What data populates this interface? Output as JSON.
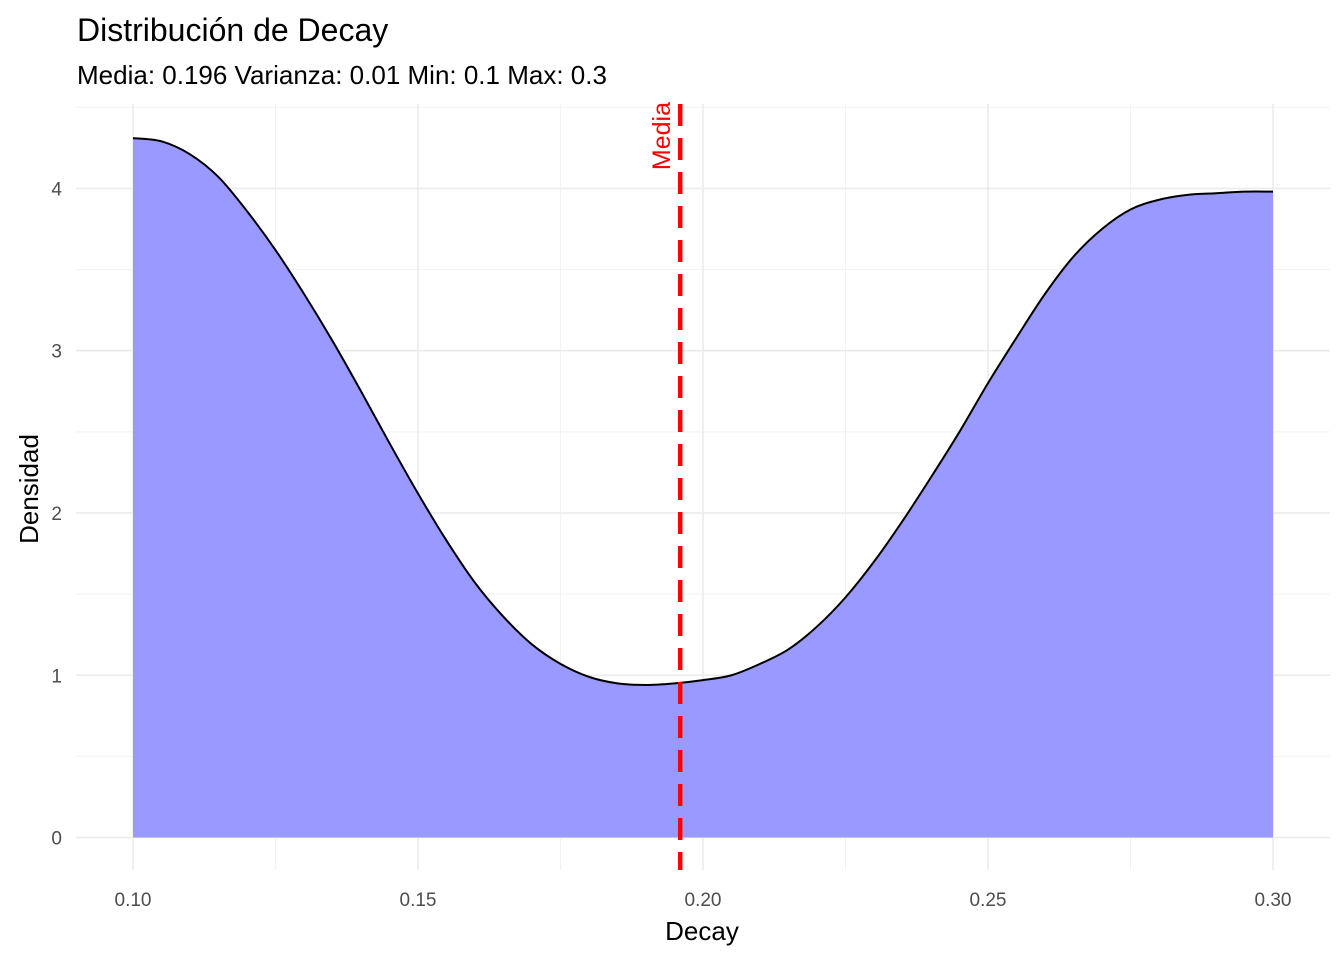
{
  "chart_data": {
    "type": "area",
    "title": "Distribución de Decay",
    "subtitle": "Media: 0.196 Varianza: 0.01 Min: 0.1 Max: 0.3",
    "xlabel": "Decay",
    "ylabel": "Densidad",
    "xlim": [
      0.09,
      0.31
    ],
    "ylim": [
      -0.2,
      4.52
    ],
    "x_ticks": [
      0.1,
      0.15,
      0.2,
      0.25,
      0.3
    ],
    "x_tick_labels": [
      "0.10",
      "0.15",
      "0.20",
      "0.25",
      "0.30"
    ],
    "y_ticks": [
      0,
      1,
      2,
      3,
      4
    ],
    "y_tick_labels": [
      "0",
      "1",
      "2",
      "3",
      "4"
    ],
    "grid": true,
    "series": [
      {
        "x": [
          0.1,
          0.105,
          0.11,
          0.115,
          0.12,
          0.125,
          0.13,
          0.135,
          0.14,
          0.145,
          0.15,
          0.155,
          0.16,
          0.165,
          0.17,
          0.175,
          0.18,
          0.185,
          0.19,
          0.195,
          0.2,
          0.205,
          0.21,
          0.215,
          0.22,
          0.225,
          0.23,
          0.235,
          0.24,
          0.245,
          0.25,
          0.255,
          0.26,
          0.265,
          0.27,
          0.275,
          0.28,
          0.285,
          0.29,
          0.295,
          0.3
        ],
        "y": [
          4.31,
          4.29,
          4.21,
          4.07,
          3.86,
          3.62,
          3.35,
          3.06,
          2.75,
          2.43,
          2.12,
          1.83,
          1.57,
          1.36,
          1.19,
          1.07,
          0.99,
          0.95,
          0.94,
          0.95,
          0.97,
          1.0,
          1.07,
          1.16,
          1.3,
          1.48,
          1.7,
          1.95,
          2.22,
          2.5,
          2.8,
          3.08,
          3.35,
          3.58,
          3.75,
          3.87,
          3.93,
          3.96,
          3.97,
          3.98,
          3.98
        ],
        "fill": "#9999ff",
        "stroke": "#000000"
      }
    ],
    "mean_line": {
      "x": 0.196,
      "label": "Media",
      "color": "#ff0000"
    }
  }
}
